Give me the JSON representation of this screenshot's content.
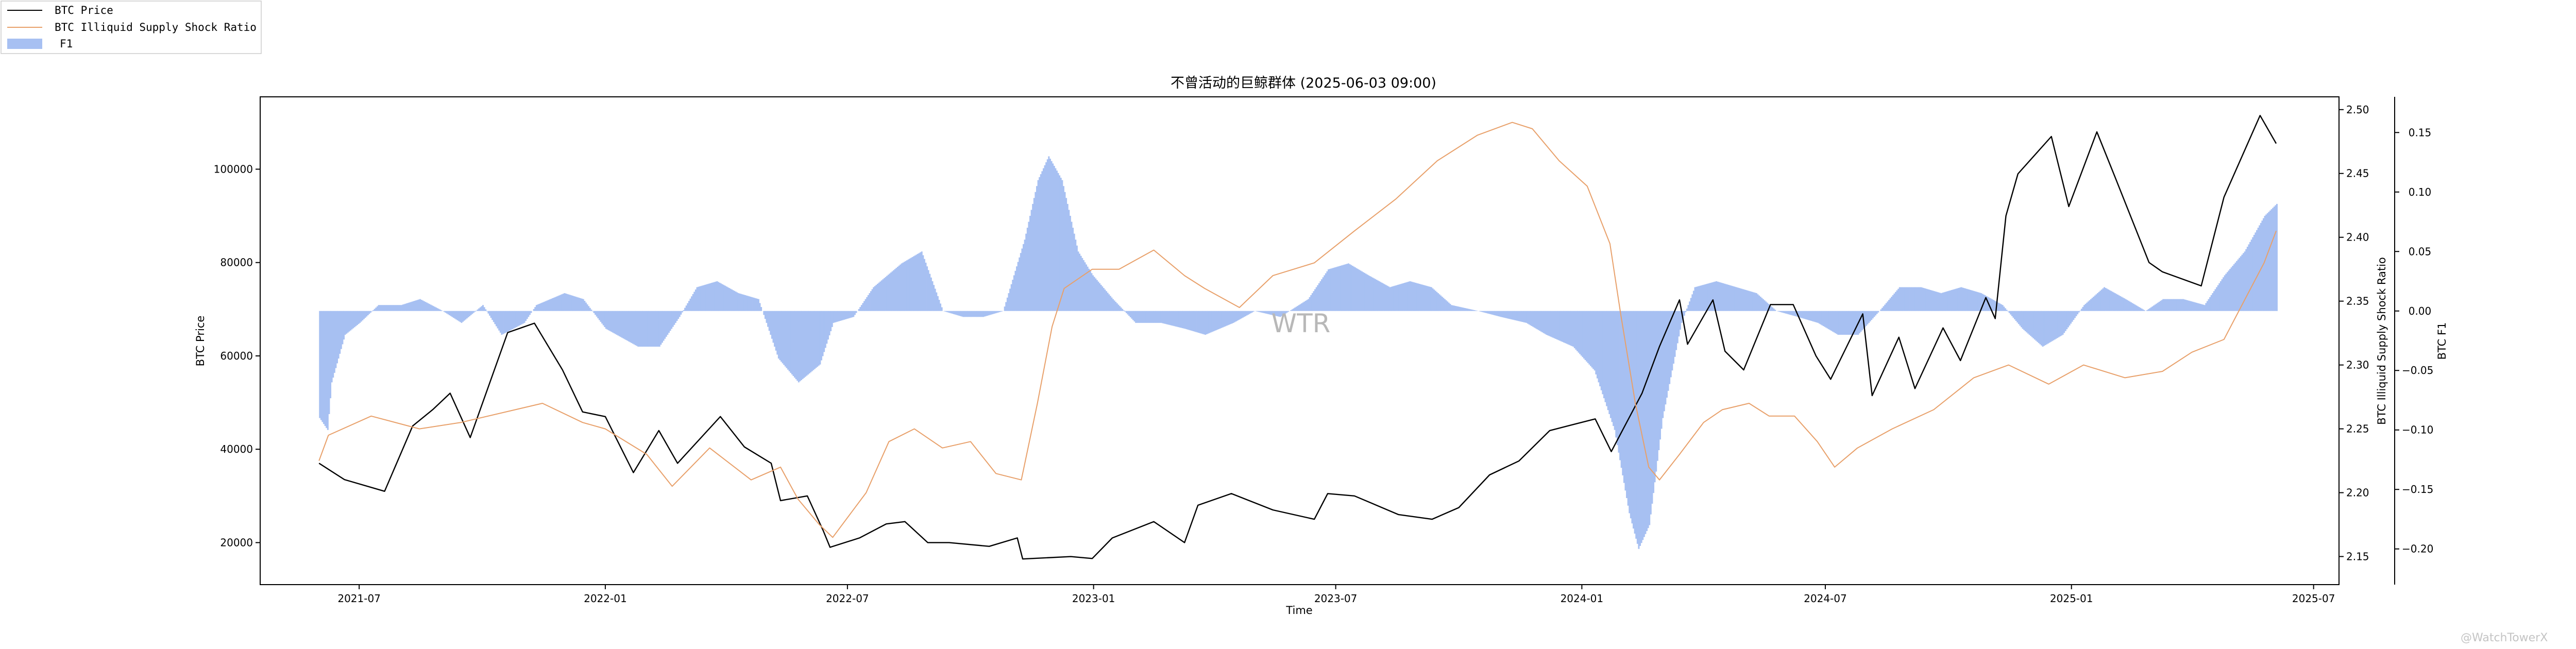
{
  "chart_data": {
    "type": "line",
    "title": "不曾活动的巨鲸群体 (2025-06-03 09:00)",
    "xlabel": "Time",
    "ylabel": "BTC Price",
    "ylabel_right": "BTC Illiquid Supply Shock Ratio",
    "ylabel_right2": "BTC F1",
    "xlim": [
      "2021-04-18",
      "2025-07-20"
    ],
    "x_ticks": [
      "2021-07",
      "2022-01",
      "2022-07",
      "2023-01",
      "2023-07",
      "2024-01",
      "2024-07",
      "2025-01",
      "2025-07"
    ],
    "x_tick_dates": [
      "2021-07-01",
      "2022-01-01",
      "2022-07-01",
      "2023-01-01",
      "2023-07-01",
      "2024-01-01",
      "2024-07-01",
      "2025-01-01",
      "2025-07-01"
    ],
    "ylim_price": [
      11000,
      115500
    ],
    "yticks_price": [
      20000,
      40000,
      60000,
      80000,
      100000
    ],
    "ylim_ratio": [
      2.128,
      2.51
    ],
    "yticks_ratio": [
      2.15,
      2.2,
      2.25,
      2.3,
      2.35,
      2.4,
      2.45,
      2.5
    ],
    "ylim_f1": [
      -0.23,
      0.18
    ],
    "yticks_f1": [
      -0.2,
      -0.15,
      -0.1,
      -0.05,
      0.0,
      0.05,
      0.1,
      0.15
    ],
    "legend_position": "top-left",
    "series": [
      {
        "name": "BTC Price",
        "axis": "left",
        "style": "line",
        "color": "#000000",
        "points": [
          [
            "2021-06-01",
            37000
          ],
          [
            "2021-06-20",
            33500
          ],
          [
            "2021-07-20",
            31000
          ],
          [
            "2021-08-10",
            45000
          ],
          [
            "2021-08-25",
            48500
          ],
          [
            "2021-09-07",
            52000
          ],
          [
            "2021-09-22",
            42500
          ],
          [
            "2021-10-20",
            65000
          ],
          [
            "2021-11-09",
            67000
          ],
          [
            "2021-11-30",
            57000
          ],
          [
            "2021-12-15",
            48000
          ],
          [
            "2022-01-01",
            47000
          ],
          [
            "2022-01-22",
            35000
          ],
          [
            "2022-02-10",
            44000
          ],
          [
            "2022-02-24",
            37000
          ],
          [
            "2022-03-28",
            47000
          ],
          [
            "2022-04-15",
            40500
          ],
          [
            "2022-05-05",
            37000
          ],
          [
            "2022-05-12",
            29000
          ],
          [
            "2022-06-01",
            30000
          ],
          [
            "2022-06-13",
            22500
          ],
          [
            "2022-06-18",
            19000
          ],
          [
            "2022-07-10",
            21000
          ],
          [
            "2022-07-30",
            24000
          ],
          [
            "2022-08-13",
            24500
          ],
          [
            "2022-08-30",
            20000
          ],
          [
            "2022-09-15",
            20000
          ],
          [
            "2022-10-15",
            19200
          ],
          [
            "2022-11-05",
            21000
          ],
          [
            "2022-11-09",
            16500
          ],
          [
            "2022-12-15",
            17000
          ],
          [
            "2022-12-31",
            16600
          ],
          [
            "2023-01-15",
            21000
          ],
          [
            "2023-02-15",
            24500
          ],
          [
            "2023-03-10",
            20000
          ],
          [
            "2023-03-20",
            28000
          ],
          [
            "2023-04-14",
            30500
          ],
          [
            "2023-05-15",
            27000
          ],
          [
            "2023-06-15",
            25000
          ],
          [
            "2023-06-25",
            30500
          ],
          [
            "2023-07-15",
            30000
          ],
          [
            "2023-08-17",
            26000
          ],
          [
            "2023-09-11",
            25000
          ],
          [
            "2023-10-01",
            27500
          ],
          [
            "2023-10-24",
            34500
          ],
          [
            "2023-11-15",
            37500
          ],
          [
            "2023-12-08",
            44000
          ],
          [
            "2024-01-11",
            46500
          ],
          [
            "2024-01-23",
            39500
          ],
          [
            "2024-02-15",
            52000
          ],
          [
            "2024-02-28",
            62000
          ],
          [
            "2024-03-14",
            72000
          ],
          [
            "2024-03-20",
            62500
          ],
          [
            "2024-04-08",
            72000
          ],
          [
            "2024-04-17",
            61000
          ],
          [
            "2024-05-01",
            57000
          ],
          [
            "2024-05-21",
            71000
          ],
          [
            "2024-06-07",
            71000
          ],
          [
            "2024-06-24",
            60000
          ],
          [
            "2024-07-05",
            55000
          ],
          [
            "2024-07-29",
            69000
          ],
          [
            "2024-08-05",
            51500
          ],
          [
            "2024-08-25",
            64000
          ],
          [
            "2024-09-06",
            53000
          ],
          [
            "2024-09-27",
            66000
          ],
          [
            "2024-10-10",
            59000
          ],
          [
            "2024-10-29",
            72500
          ],
          [
            "2024-11-05",
            68000
          ],
          [
            "2024-11-13",
            90000
          ],
          [
            "2024-11-22",
            99000
          ],
          [
            "2024-12-17",
            107000
          ],
          [
            "2024-12-30",
            92000
          ],
          [
            "2025-01-20",
            108000
          ],
          [
            "2025-02-03",
            98000
          ],
          [
            "2025-02-28",
            80000
          ],
          [
            "2025-03-10",
            78000
          ],
          [
            "2025-04-08",
            75000
          ],
          [
            "2025-04-25",
            94000
          ],
          [
            "2025-05-22",
            111500
          ],
          [
            "2025-06-03",
            105500
          ]
        ]
      },
      {
        "name": "BTC Illiquid Supply Shock Ratio",
        "axis": "right",
        "style": "line",
        "color": "#e8a06a",
        "points": [
          [
            "2021-06-01",
            2.225
          ],
          [
            "2021-06-08",
            2.245
          ],
          [
            "2021-07-10",
            2.26
          ],
          [
            "2021-08-15",
            2.25
          ],
          [
            "2021-09-15",
            2.255
          ],
          [
            "2021-11-15",
            2.27
          ],
          [
            "2021-12-15",
            2.255
          ],
          [
            "2022-01-01",
            2.25
          ],
          [
            "2022-02-01",
            2.23
          ],
          [
            "2022-02-20",
            2.205
          ],
          [
            "2022-03-20",
            2.235
          ],
          [
            "2022-04-20",
            2.21
          ],
          [
            "2022-05-12",
            2.22
          ],
          [
            "2022-05-25",
            2.195
          ],
          [
            "2022-06-10",
            2.175
          ],
          [
            "2022-06-20",
            2.165
          ],
          [
            "2022-07-15",
            2.2
          ],
          [
            "2022-08-01",
            2.24
          ],
          [
            "2022-08-20",
            2.25
          ],
          [
            "2022-09-10",
            2.235
          ],
          [
            "2022-10-01",
            2.24
          ],
          [
            "2022-10-20",
            2.215
          ],
          [
            "2022-11-08",
            2.21
          ],
          [
            "2022-11-20",
            2.27
          ],
          [
            "2022-12-01",
            2.33
          ],
          [
            "2022-12-10",
            2.36
          ],
          [
            "2022-12-31",
            2.375
          ],
          [
            "2023-01-20",
            2.375
          ],
          [
            "2023-02-15",
            2.39
          ],
          [
            "2023-03-10",
            2.37
          ],
          [
            "2023-03-25",
            2.36
          ],
          [
            "2023-04-20",
            2.345
          ],
          [
            "2023-05-15",
            2.37
          ],
          [
            "2023-06-15",
            2.38
          ],
          [
            "2023-07-15",
            2.405
          ],
          [
            "2023-08-15",
            2.43
          ],
          [
            "2023-09-15",
            2.46
          ],
          [
            "2023-10-15",
            2.48
          ],
          [
            "2023-11-10",
            2.49
          ],
          [
            "2023-11-25",
            2.485
          ],
          [
            "2023-12-15",
            2.46
          ],
          [
            "2024-01-05",
            2.44
          ],
          [
            "2024-01-22",
            2.395
          ],
          [
            "2024-01-30",
            2.34
          ],
          [
            "2024-02-10",
            2.27
          ],
          [
            "2024-02-20",
            2.22
          ],
          [
            "2024-02-28",
            2.21
          ],
          [
            "2024-03-14",
            2.23
          ],
          [
            "2024-04-01",
            2.255
          ],
          [
            "2024-04-15",
            2.265
          ],
          [
            "2024-05-05",
            2.27
          ],
          [
            "2024-05-20",
            2.26
          ],
          [
            "2024-06-08",
            2.26
          ],
          [
            "2024-06-25",
            2.24
          ],
          [
            "2024-07-08",
            2.22
          ],
          [
            "2024-07-25",
            2.235
          ],
          [
            "2024-08-20",
            2.25
          ],
          [
            "2024-09-20",
            2.265
          ],
          [
            "2024-10-20",
            2.29
          ],
          [
            "2024-11-15",
            2.3
          ],
          [
            "2024-12-15",
            2.285
          ],
          [
            "2025-01-10",
            2.3
          ],
          [
            "2025-02-10",
            2.29
          ],
          [
            "2025-03-10",
            2.295
          ],
          [
            "2025-04-01",
            2.31
          ],
          [
            "2025-04-25",
            2.32
          ],
          [
            "2025-05-10",
            2.35
          ],
          [
            "2025-05-25",
            2.38
          ],
          [
            "2025-06-03",
            2.405
          ]
        ]
      },
      {
        "name": "F1",
        "axis": "right2",
        "style": "bar",
        "color": "#a7c0f2",
        "points": [
          [
            "2021-06-01",
            -0.09
          ],
          [
            "2021-06-07",
            -0.1
          ],
          [
            "2021-06-10",
            -0.06
          ],
          [
            "2021-06-20",
            -0.02
          ],
          [
            "2021-07-01",
            -0.01
          ],
          [
            "2021-07-15",
            0.005
          ],
          [
            "2021-08-01",
            0.005
          ],
          [
            "2021-08-15",
            0.01
          ],
          [
            "2021-09-01",
            0.0
          ],
          [
            "2021-09-15",
            -0.01
          ],
          [
            "2021-10-01",
            0.005
          ],
          [
            "2021-10-15",
            -0.02
          ],
          [
            "2021-11-01",
            -0.01
          ],
          [
            "2021-11-10",
            0.005
          ],
          [
            "2021-12-01",
            0.015
          ],
          [
            "2021-12-15",
            0.01
          ],
          [
            "2022-01-01",
            -0.015
          ],
          [
            "2022-01-25",
            -0.03
          ],
          [
            "2022-02-10",
            -0.03
          ],
          [
            "2022-02-25",
            -0.005
          ],
          [
            "2022-03-10",
            0.02
          ],
          [
            "2022-03-25",
            0.025
          ],
          [
            "2022-04-10",
            0.015
          ],
          [
            "2022-04-25",
            0.01
          ],
          [
            "2022-05-10",
            -0.04
          ],
          [
            "2022-05-25",
            -0.06
          ],
          [
            "2022-06-10",
            -0.045
          ],
          [
            "2022-06-20",
            -0.01
          ],
          [
            "2022-07-05",
            -0.005
          ],
          [
            "2022-07-20",
            0.02
          ],
          [
            "2022-08-10",
            0.04
          ],
          [
            "2022-08-25",
            0.05
          ],
          [
            "2022-09-10",
            0.0
          ],
          [
            "2022-09-25",
            -0.005
          ],
          [
            "2022-10-10",
            -0.005
          ],
          [
            "2022-10-25",
            0.0
          ],
          [
            "2022-11-10",
            0.06
          ],
          [
            "2022-11-20",
            0.11
          ],
          [
            "2022-11-28",
            0.13
          ],
          [
            "2022-12-08",
            0.11
          ],
          [
            "2022-12-20",
            0.05
          ],
          [
            "2022-12-31",
            0.03
          ],
          [
            "2023-01-15",
            0.01
          ],
          [
            "2023-02-01",
            -0.01
          ],
          [
            "2023-02-20",
            -0.01
          ],
          [
            "2023-03-10",
            -0.015
          ],
          [
            "2023-03-25",
            -0.02
          ],
          [
            "2023-04-15",
            -0.01
          ],
          [
            "2023-05-01",
            0.0
          ],
          [
            "2023-05-20",
            -0.005
          ],
          [
            "2023-06-10",
            0.01
          ],
          [
            "2023-06-25",
            0.035
          ],
          [
            "2023-07-10",
            0.04
          ],
          [
            "2023-07-25",
            0.03
          ],
          [
            "2023-08-10",
            0.02
          ],
          [
            "2023-08-25",
            0.025
          ],
          [
            "2023-09-10",
            0.02
          ],
          [
            "2023-09-25",
            0.005
          ],
          [
            "2023-10-15",
            0.0
          ],
          [
            "2023-11-01",
            -0.005
          ],
          [
            "2023-11-20",
            -0.01
          ],
          [
            "2023-12-05",
            -0.02
          ],
          [
            "2023-12-25",
            -0.03
          ],
          [
            "2024-01-10",
            -0.05
          ],
          [
            "2024-01-25",
            -0.1
          ],
          [
            "2024-02-05",
            -0.17
          ],
          [
            "2024-02-12",
            -0.2
          ],
          [
            "2024-02-20",
            -0.18
          ],
          [
            "2024-03-01",
            -0.09
          ],
          [
            "2024-03-15",
            -0.01
          ],
          [
            "2024-03-25",
            0.02
          ],
          [
            "2024-04-10",
            0.025
          ],
          [
            "2024-04-25",
            0.02
          ],
          [
            "2024-05-10",
            0.015
          ],
          [
            "2024-05-25",
            0.0
          ],
          [
            "2024-06-10",
            -0.005
          ],
          [
            "2024-06-25",
            -0.01
          ],
          [
            "2024-07-10",
            -0.02
          ],
          [
            "2024-07-25",
            -0.02
          ],
          [
            "2024-08-10",
            0.0
          ],
          [
            "2024-08-25",
            0.02
          ],
          [
            "2024-09-10",
            0.02
          ],
          [
            "2024-09-25",
            0.015
          ],
          [
            "2024-10-10",
            0.02
          ],
          [
            "2024-10-25",
            0.015
          ],
          [
            "2024-11-10",
            0.005
          ],
          [
            "2024-11-25",
            -0.015
          ],
          [
            "2024-12-10",
            -0.03
          ],
          [
            "2024-12-25",
            -0.02
          ],
          [
            "2025-01-10",
            0.005
          ],
          [
            "2025-01-25",
            0.02
          ],
          [
            "2025-02-10",
            0.01
          ],
          [
            "2025-02-25",
            0.0
          ],
          [
            "2025-03-10",
            0.01
          ],
          [
            "2025-03-25",
            0.01
          ],
          [
            "2025-04-10",
            0.005
          ],
          [
            "2025-04-25",
            0.03
          ],
          [
            "2025-05-10",
            0.05
          ],
          [
            "2025-05-25",
            0.08
          ],
          [
            "2025-06-03",
            0.09
          ]
        ]
      }
    ],
    "legend": [
      {
        "label": "BTC Price",
        "kind": "line",
        "color": "#000000"
      },
      {
        "label": "BTC Illiquid Supply Shock Ratio",
        "kind": "line",
        "color": "#e8a06a"
      },
      {
        "label": "F1",
        "kind": "patch",
        "color": "#a7c0f2"
      }
    ],
    "watermark": "WTR",
    "credit": "@WatchTowerX"
  }
}
